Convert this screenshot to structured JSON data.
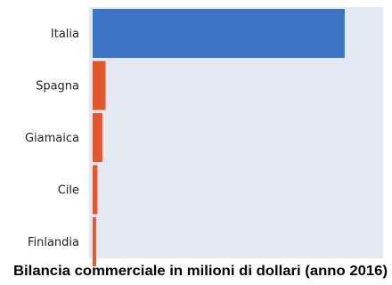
{
  "chart_data": {
    "type": "bar",
    "orientation": "horizontal",
    "categories": [
      "Italia",
      "Spagna",
      "Giamaica",
      "Cile",
      "Finlandia"
    ],
    "values": [
      8600,
      440,
      330,
      160,
      120
    ],
    "title": "Bilancia commerciale in milioni di dollari (anno 2016)",
    "xlabel": "",
    "ylabel": "",
    "xlim": [
      0,
      10000
    ],
    "grid": false,
    "legend": "none"
  },
  "colors": {
    "highlight": "#3a74c2",
    "others": "#e3582a",
    "plot_background": "#e4e8f3"
  }
}
